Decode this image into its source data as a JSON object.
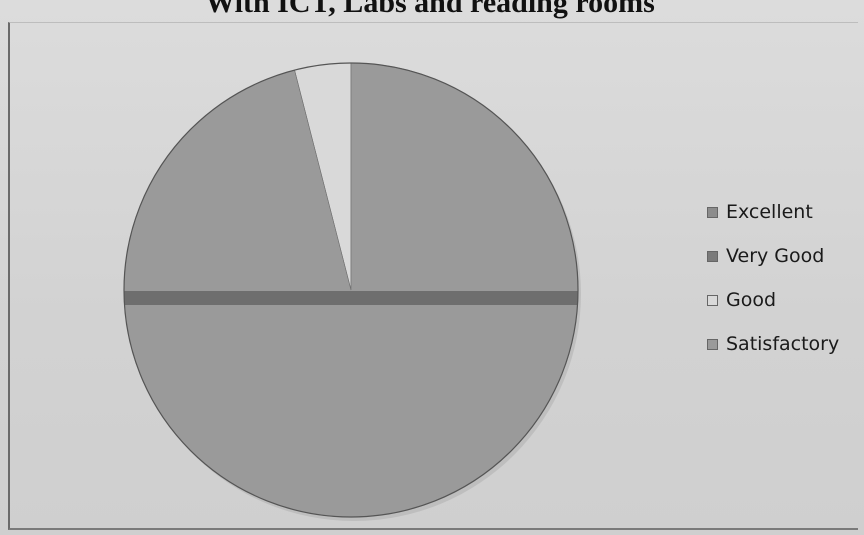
{
  "chart_data": {
    "type": "pie",
    "title": "With ICT, Labs and reading rooms",
    "categories": [
      "Excellent",
      "Very Good",
      "Good",
      "Satisfactory"
    ],
    "values": [
      0,
      0,
      4,
      96
    ],
    "colors": [
      "#8c8c8c",
      "#7a7a7a",
      "#d9d9d9",
      "#9a9a9a"
    ],
    "legend": "right"
  }
}
